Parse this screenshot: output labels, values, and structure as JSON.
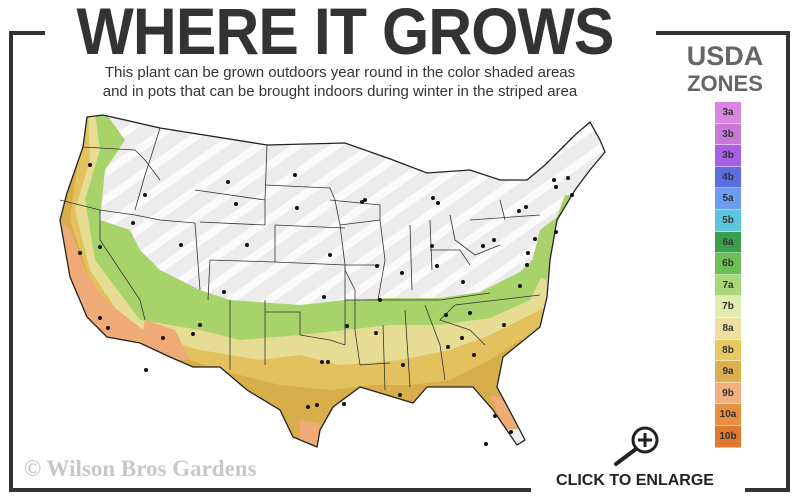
{
  "title": "WHERE IT GROWS",
  "subtitle_lines": [
    "This plant can be grown outdoors year round in the color shaded areas",
    "and in pots that can be brought indoors during winter in the striped area"
  ],
  "legend": {
    "title_line1": "USDA",
    "title_line2": "ZONES",
    "zones": [
      {
        "label": "3a",
        "color": "#d987e0"
      },
      {
        "label": "3b",
        "color": "#c77ad8"
      },
      {
        "label": "3b",
        "color": "#a560e6"
      },
      {
        "label": "4b",
        "color": "#5a6ee0"
      },
      {
        "label": "5a",
        "color": "#6d9cf0"
      },
      {
        "label": "5b",
        "color": "#5cc4dc"
      },
      {
        "label": "6a",
        "color": "#3a9e4a"
      },
      {
        "label": "6b",
        "color": "#6cbf55"
      },
      {
        "label": "7a",
        "color": "#a8d878"
      },
      {
        "label": "7b",
        "color": "#e2ecb0"
      },
      {
        "label": "8a",
        "color": "#ede0a0"
      },
      {
        "label": "8b",
        "color": "#e8c860"
      },
      {
        "label": "9a",
        "color": "#dcb050"
      },
      {
        "label": "9b",
        "color": "#f0b080"
      },
      {
        "label": "10a",
        "color": "#e89040"
      },
      {
        "label": "10b",
        "color": "#e07a2e"
      }
    ]
  },
  "watermark": "© Wilson Bros Gardens",
  "enlarge_label": "CLICK TO ENLARGE",
  "icons": {
    "enlarge": "magnifier-plus-icon"
  }
}
